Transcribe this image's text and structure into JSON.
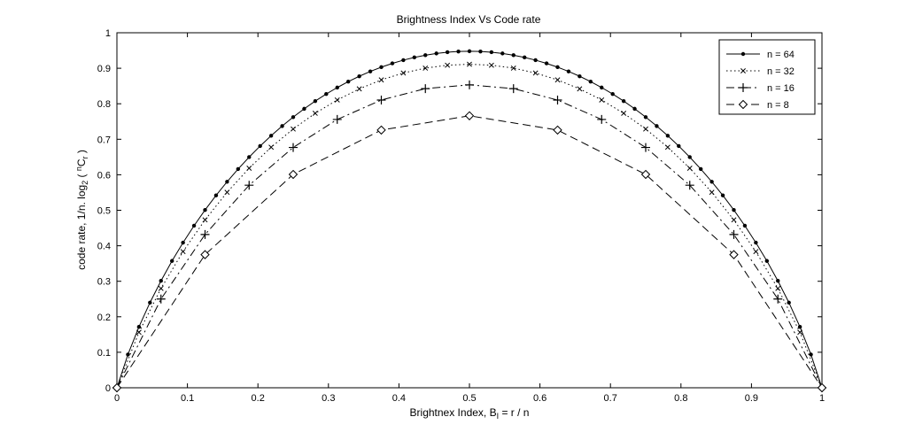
{
  "chart_data": {
    "type": "line",
    "title": "Brightness Index  Vs  Code rate",
    "xlabel": {
      "main": "Brightnex Index, B",
      "sub": "I",
      "tail": " = r / n"
    },
    "ylabel": {
      "p1": "code rate, 1/n. log",
      "sub1": "2",
      "p2": " ( ",
      "sup": "n",
      "p3": "C",
      "sub2": "r",
      "p4": " )"
    },
    "xlim": [
      0,
      1
    ],
    "ylim": [
      0,
      1
    ],
    "xticks": [
      0,
      0.1,
      0.2,
      0.3,
      0.4,
      0.5,
      0.6,
      0.7,
      0.8,
      0.9,
      1
    ],
    "yticks": [
      0,
      0.1,
      0.2,
      0.3,
      0.4,
      0.5,
      0.6,
      0.7,
      0.8,
      0.9,
      1
    ],
    "xtick_labels": [
      "0",
      "0.1",
      "0.2",
      "0.3",
      "0.4",
      "0.5",
      "0.6",
      "0.7",
      "0.8",
      "0.9",
      "1"
    ],
    "ytick_labels": [
      "0",
      "0.1",
      "0.2",
      "0.3",
      "0.4",
      "0.5",
      "0.6",
      "0.7",
      "0.8",
      "0.9",
      "1"
    ],
    "grid": false,
    "legend_position": "top-right",
    "series": [
      {
        "name": "n = 64",
        "n": 64,
        "line": "solid",
        "marker": "dot",
        "color": "#000000"
      },
      {
        "name": "n = 32",
        "n": 32,
        "line": "dotted",
        "marker": "x",
        "color": "#000000"
      },
      {
        "name": "n = 16",
        "n": 16,
        "line": "dashdot",
        "marker": "plus",
        "color": "#000000"
      },
      {
        "name": "n = 8",
        "n": 8,
        "line": "dashed",
        "marker": "diamond",
        "color": "#000000"
      }
    ],
    "formula": "y = log2(C(n, r)) / n for r = 0..n, x = r / n"
  }
}
